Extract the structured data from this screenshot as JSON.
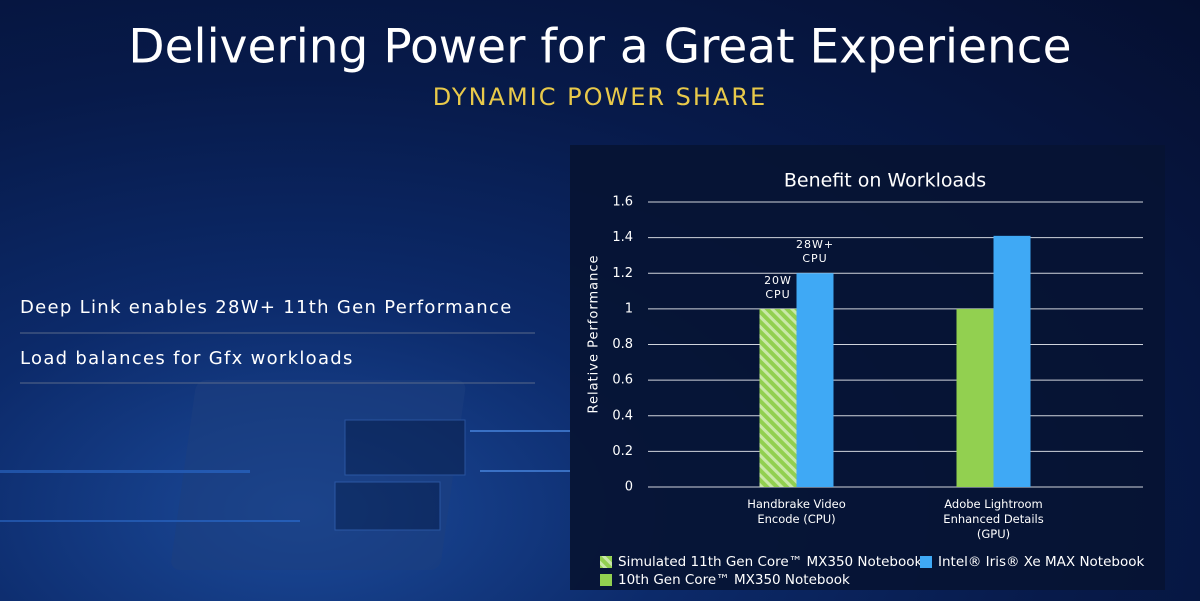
{
  "slide": {
    "title": "Delivering Power for a Great Experience",
    "subtitle": "DYNAMIC POWER SHARE",
    "bullets": [
      "Deep Link enables 28W+ 11th Gen Performance",
      "Load balances for Gfx workloads"
    ]
  },
  "chart_data": {
    "type": "bar",
    "title": "Benefit on Workloads",
    "y_label": "Relative Performance",
    "categories": [
      "Handbrake Video Encode (CPU)",
      "Adobe Lightroom Enhanced Details (GPU)"
    ],
    "series": [
      {
        "name": "Simulated 11th Gen Core™ MX350 Notebook",
        "color": "#92d050",
        "hatch": true,
        "values": [
          1,
          null
        ]
      },
      {
        "name": "10th Gen Core™  MX350 Notebook",
        "color": "#92d050",
        "values": [
          null,
          1
        ]
      },
      {
        "name": "Intel® Iris® Xe MAX Notebook",
        "color": "#3fa9f5",
        "values": [
          1.2,
          1.41
        ]
      }
    ],
    "annotations": [
      "20W CPU",
      "28W+ CPU"
    ],
    "ylim": [
      0,
      1.6
    ],
    "yticks": [
      0,
      0.2,
      0.4,
      0.6,
      0.8,
      1,
      1.2,
      1.4,
      1.6
    ],
    "grid": true
  }
}
